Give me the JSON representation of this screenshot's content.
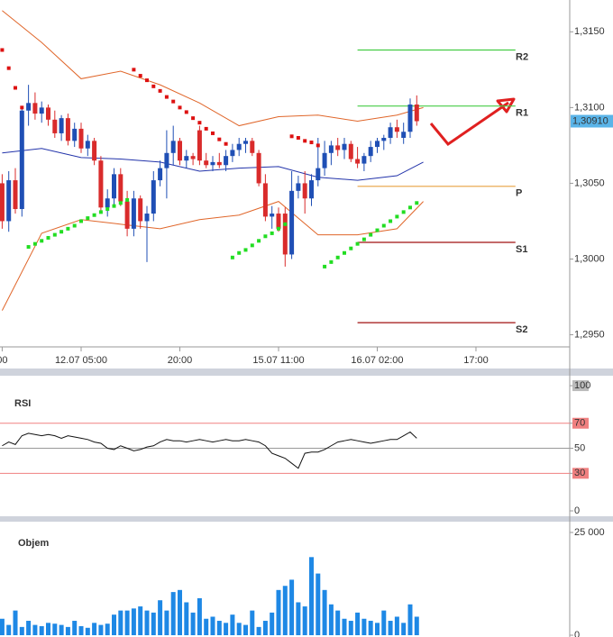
{
  "chart_data": [
    {
      "type": "candlestick",
      "x": [
        -12,
        -11,
        -10,
        -9,
        -8,
        -7,
        -6,
        -5,
        -4,
        -3,
        -2,
        -1,
        0,
        1,
        2,
        3,
        4,
        5,
        6,
        7,
        8,
        9,
        10,
        11,
        12,
        13,
        14,
        15,
        16,
        17,
        18,
        19,
        20,
        21,
        22,
        23,
        24,
        25,
        26,
        27,
        28,
        29,
        30,
        31,
        32,
        33,
        34,
        35,
        36,
        37,
        38,
        39,
        40,
        41,
        42,
        43,
        44,
        45,
        46,
        47,
        48,
        49,
        50,
        51
      ],
      "open": [
        1.305,
        1.3025,
        1.3052,
        1.3033,
        1.3098,
        1.3103,
        1.3096,
        1.31,
        1.3092,
        1.3083,
        1.3093,
        1.3078,
        1.3086,
        1.3073,
        1.3078,
        1.3065,
        1.3034,
        1.304,
        1.3056,
        1.3038,
        1.302,
        1.304,
        1.3025,
        1.303,
        1.3052,
        1.306,
        1.307,
        1.3078,
        1.3065,
        1.3068,
        1.3085,
        1.3065,
        1.3062,
        1.3064,
        1.3062,
        1.3068,
        1.3072,
        1.3076,
        1.3078,
        1.307,
        1.305,
        1.3028,
        1.303,
        1.303,
        1.3003,
        1.3045,
        1.305,
        1.304,
        1.3052,
        1.306,
        1.307,
        1.3075,
        1.3072,
        1.3076,
        1.3066,
        1.3063,
        1.3068,
        1.3074,
        1.3078,
        1.308,
        1.3087,
        1.308,
        1.3084,
        1.3102
      ],
      "high": [
        1.3056,
        1.3058,
        1.306,
        1.31,
        1.3115,
        1.311,
        1.3104,
        1.3102,
        1.3098,
        1.3095,
        1.3096,
        1.309,
        1.309,
        1.3082,
        1.308,
        1.3068,
        1.3046,
        1.306,
        1.306,
        1.3045,
        1.3045,
        1.3042,
        1.3035,
        1.3058,
        1.3065,
        1.3085,
        1.3088,
        1.308,
        1.3072,
        1.307,
        1.3088,
        1.307,
        1.3068,
        1.307,
        1.3072,
        1.3076,
        1.308,
        1.308,
        1.308,
        1.3072,
        1.3056,
        1.3035,
        1.3034,
        1.3034,
        1.3058,
        1.3055,
        1.3058,
        1.3056,
        1.308,
        1.3078,
        1.3078,
        1.308,
        1.308,
        1.3078,
        1.3074,
        1.307,
        1.3078,
        1.308,
        1.3082,
        1.309,
        1.3092,
        1.309,
        1.3106,
        1.3108
      ],
      "low": [
        1.302,
        1.3018,
        1.303,
        1.3028,
        1.3088,
        1.3092,
        1.309,
        1.3088,
        1.308,
        1.3078,
        1.3075,
        1.3074,
        1.307,
        1.3068,
        1.3062,
        1.303,
        1.3028,
        1.3036,
        1.3035,
        1.3015,
        1.3015,
        1.302,
        1.2998,
        1.3025,
        1.3048,
        1.304,
        1.3062,
        1.3062,
        1.306,
        1.3062,
        1.3062,
        1.306,
        1.3058,
        1.306,
        1.3058,
        1.3064,
        1.3068,
        1.307,
        1.3068,
        1.3048,
        1.3025,
        1.302,
        1.3018,
        1.2995,
        1.3,
        1.304,
        1.303,
        1.3035,
        1.3048,
        1.3055,
        1.3062,
        1.3068,
        1.3066,
        1.3064,
        1.306,
        1.3058,
        1.3064,
        1.307,
        1.3072,
        1.3076,
        1.308,
        1.3076,
        1.308,
        1.3088
      ],
      "close": [
        1.3025,
        1.3052,
        1.3033,
        1.3098,
        1.3103,
        1.3096,
        1.31,
        1.3092,
        1.3083,
        1.3093,
        1.3078,
        1.3086,
        1.3073,
        1.3078,
        1.3065,
        1.3034,
        1.304,
        1.3056,
        1.3038,
        1.302,
        1.304,
        1.3025,
        1.303,
        1.3052,
        1.306,
        1.307,
        1.3078,
        1.3065,
        1.3068,
        1.3066,
        1.3065,
        1.3062,
        1.3064,
        1.3062,
        1.3068,
        1.3072,
        1.3076,
        1.3078,
        1.307,
        1.305,
        1.3028,
        1.303,
        1.302,
        1.3003,
        1.3045,
        1.305,
        1.304,
        1.3052,
        1.306,
        1.307,
        1.3075,
        1.3072,
        1.3076,
        1.3066,
        1.3063,
        1.3068,
        1.3074,
        1.3078,
        1.308,
        1.3087,
        1.3084,
        1.3084,
        1.3102,
        1.3091
      ],
      "up_color": "#1f4fb5",
      "down_color": "#d92b2b",
      "xlim": [
        -12.33,
        74.25
      ],
      "xticks": [
        {
          "value": -12,
          "label": "00"
        },
        {
          "value": 0,
          "label": "12.07 05:00"
        },
        {
          "value": 15,
          "label": "20:00"
        },
        {
          "value": 30,
          "label": "15.07 11:00"
        },
        {
          "value": 45,
          "label": "16.07 02:00"
        },
        {
          "value": 60,
          "label": "17:00"
        }
      ],
      "ylim": [
        1.2942,
        1.3171
      ],
      "yticks": [
        {
          "value": 1.315,
          "label": "1,3150"
        },
        {
          "value": 1.31,
          "label": "1,3100"
        },
        {
          "value": 1.305,
          "label": "1,3050"
        },
        {
          "value": 1.3,
          "label": "1,3000"
        },
        {
          "value": 1.295,
          "label": "1,2950"
        }
      ],
      "current_price": {
        "value": 1.3091,
        "label": "1,30910",
        "color": "#5ab4e8"
      },
      "bands": [
        {
          "color": "#e0662a",
          "x": [
            -12,
            -6,
            0,
            6,
            12,
            18,
            24,
            30,
            36,
            42,
            48,
            52
          ],
          "values": [
            1.3164,
            1.3143,
            1.3119,
            1.3124,
            1.3115,
            1.3103,
            1.3088,
            1.3094,
            1.3095,
            1.3091,
            1.3095,
            1.31
          ]
        },
        {
          "color": "#2233aa",
          "x": [
            -12,
            -6,
            0,
            6,
            12,
            18,
            24,
            30,
            36,
            42,
            48,
            52
          ],
          "values": [
            1.307,
            1.3073,
            1.3067,
            1.3066,
            1.3064,
            1.3058,
            1.306,
            1.3061,
            1.3054,
            1.3052,
            1.3055,
            1.3064
          ]
        },
        {
          "color": "#e0662a",
          "x": [
            -12,
            -6,
            0,
            6,
            12,
            18,
            24,
            30,
            36,
            42,
            48,
            52
          ],
          "values": [
            1.2966,
            1.3017,
            1.3026,
            1.3023,
            1.302,
            1.3026,
            1.3029,
            1.3038,
            1.3016,
            1.3016,
            1.302,
            1.3038
          ]
        }
      ],
      "sar": [
        {
          "color": "#dd1111",
          "x": [
            -12,
            -11,
            -10,
            -9,
            8,
            9,
            10,
            11,
            12,
            13,
            14,
            15,
            16,
            17,
            18,
            19,
            20,
            21,
            22,
            32,
            33,
            34,
            35,
            36
          ],
          "values": [
            1.3138,
            1.3126,
            1.3113,
            1.31,
            1.3125,
            1.3121,
            1.3118,
            1.3114,
            1.3111,
            1.3107,
            1.3104,
            1.31,
            1.3097,
            1.3093,
            1.309,
            1.3086,
            1.3083,
            1.3079,
            1.3076,
            1.3081,
            1.308,
            1.3078,
            1.3077,
            1.3075
          ]
        },
        {
          "color": "#22dd22",
          "x": [
            -8,
            -7,
            -6,
            -5,
            -4,
            -3,
            -2,
            -1,
            0,
            1,
            2,
            3,
            4,
            5,
            6,
            7,
            23,
            24,
            25,
            26,
            27,
            28,
            29,
            30,
            31,
            37,
            38,
            39,
            40,
            41,
            42,
            43,
            44,
            45,
            46,
            47,
            48,
            49,
            50,
            51
          ],
          "values": [
            1.3008,
            1.301,
            1.3012,
            1.3014,
            1.3016,
            1.3018,
            1.302,
            1.3022,
            1.3025,
            1.3027,
            1.3029,
            1.3031,
            1.3033,
            1.3035,
            1.3037,
            1.3039,
            1.3001,
            1.3004,
            1.3006,
            1.3009,
            1.3012,
            1.3015,
            1.3017,
            1.302,
            1.3023,
            1.2995,
            1.2998,
            1.3001,
            1.3004,
            1.3007,
            1.301,
            1.3013,
            1.3016,
            1.3019,
            1.3022,
            1.3025,
            1.3028,
            1.3031,
            1.3034,
            1.3037
          ]
        }
      ],
      "pivots": [
        {
          "name": "R2",
          "value": 1.3138,
          "color": "#44cc44",
          "x": [
            42,
            66
          ]
        },
        {
          "name": "R1",
          "value": 1.3101,
          "color": "#44cc44",
          "x": [
            42,
            66
          ]
        },
        {
          "name": "P",
          "value": 1.3048,
          "color": "#e8a040",
          "x": [
            42,
            66
          ]
        },
        {
          "name": "S1",
          "value": 1.3011,
          "color": "#a01010",
          "x": [
            42,
            66
          ]
        },
        {
          "name": "S2",
          "value": 1.2958,
          "color": "#a01010",
          "x": [
            42,
            66
          ]
        }
      ]
    },
    {
      "type": "line",
      "title": "RSI",
      "color": "#111",
      "x": [
        -12,
        -11,
        -10,
        -9,
        -8,
        -7,
        -6,
        -5,
        -4,
        -3,
        -2,
        -1,
        0,
        1,
        2,
        3,
        4,
        5,
        6,
        7,
        8,
        9,
        10,
        11,
        12,
        13,
        14,
        15,
        16,
        17,
        18,
        19,
        20,
        21,
        22,
        23,
        24,
        25,
        26,
        27,
        28,
        29,
        30,
        31,
        32,
        33,
        34,
        35,
        36,
        37,
        38,
        39,
        40,
        41,
        42,
        43,
        44,
        45,
        46,
        47,
        48,
        49,
        50,
        51
      ],
      "values": [
        52,
        55,
        53,
        60,
        62,
        61,
        60,
        61,
        60,
        58,
        60,
        59,
        58,
        57,
        55,
        54,
        50,
        49,
        52,
        50,
        48,
        49,
        51,
        52,
        55,
        57,
        56,
        56,
        55,
        56,
        57,
        56,
        55,
        56,
        57,
        56,
        56,
        57,
        56,
        55,
        52,
        46,
        44,
        42,
        38,
        34,
        46,
        47,
        47,
        49,
        52,
        55,
        56,
        57,
        56,
        55,
        54,
        55,
        56,
        57,
        57,
        60,
        63,
        58
      ],
      "xlim": [
        -12.33,
        74.25
      ],
      "ylim": [
        -3.6,
        105.8
      ],
      "yticks": [
        100,
        70,
        50,
        30,
        0
      ],
      "reference_lines": [
        {
          "value": 70,
          "color": "#f08080"
        },
        {
          "value": 50,
          "color": "#999999"
        },
        {
          "value": 30,
          "color": "#f08080"
        }
      ]
    },
    {
      "type": "bar",
      "title": "Objem",
      "color": "#1e88e5",
      "x": [
        -12,
        -11,
        -10,
        -9,
        -8,
        -7,
        -6,
        -5,
        -4,
        -3,
        -2,
        -1,
        0,
        1,
        2,
        3,
        4,
        5,
        6,
        7,
        8,
        9,
        10,
        11,
        12,
        13,
        14,
        15,
        16,
        17,
        18,
        19,
        20,
        21,
        22,
        23,
        24,
        25,
        26,
        27,
        28,
        29,
        30,
        31,
        32,
        33,
        34,
        35,
        36,
        37,
        38,
        39,
        40,
        41,
        42,
        43,
        44,
        45,
        46,
        47,
        48,
        49,
        50,
        51
      ],
      "values": [
        4000,
        2500,
        6000,
        2000,
        3500,
        2500,
        2200,
        3000,
        2800,
        2500,
        2000,
        3500,
        2200,
        1800,
        3000,
        2500,
        2800,
        5000,
        6000,
        6000,
        6500,
        7000,
        6000,
        5500,
        8500,
        6000,
        10500,
        11000,
        8000,
        5500,
        9000,
        4000,
        4500,
        3500,
        3000,
        5000,
        3000,
        2500,
        6000,
        2000,
        3500,
        5500,
        11000,
        12000,
        13500,
        8000,
        7000,
        19000,
        15000,
        11000,
        7500,
        6000,
        4000,
        3500,
        5500,
        4000,
        3500,
        3000,
        6000,
        3500,
        4500,
        3000,
        7500,
        4500
      ],
      "xlim": [
        -12.33,
        74.25
      ],
      "ylim": [
        0,
        27400
      ],
      "yticks": [
        {
          "value": 25000,
          "label": "25 000"
        },
        0
      ]
    }
  ]
}
